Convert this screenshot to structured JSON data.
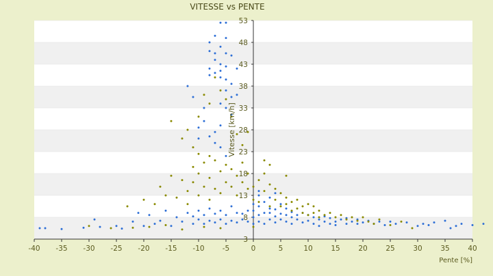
{
  "chart_data": {
    "type": "scatter",
    "title": "VITESSE vs PENTE",
    "xlabel": "Pente [%]",
    "ylabel": "Vitesse [km/h]",
    "xlim": [
      -40,
      40
    ],
    "ylim": [
      3,
      53
    ],
    "x_ticks": [
      -40,
      -35,
      -30,
      -25,
      -20,
      -15,
      -10,
      -5,
      0,
      5,
      10,
      15,
      20,
      25,
      30,
      35,
      40
    ],
    "y_ticks": [
      3,
      8,
      13,
      18,
      23,
      28,
      33,
      38,
      43,
      48,
      53
    ],
    "grid": "horizontal bands",
    "legend": "none",
    "colors": {
      "series_a": "#2e6fd6",
      "series_b": "#8a8a00",
      "band": "#f0f0f0",
      "axis_text": "#5a5a1e",
      "background": "#ecf0cc"
    },
    "series": [
      {
        "color": "#2e6fd6",
        "points": [
          [
            -39,
            5.5
          ],
          [
            -38,
            5.5
          ],
          [
            -35,
            5.3
          ],
          [
            -31,
            5.6
          ],
          [
            -29,
            7.5
          ],
          [
            -28,
            5.8
          ],
          [
            -25,
            6.0
          ],
          [
            -24,
            5.4
          ],
          [
            -22,
            7.0
          ],
          [
            -21,
            9.0
          ],
          [
            -20,
            6.0
          ],
          [
            -19,
            8.5
          ],
          [
            -18,
            6.5
          ],
          [
            -17,
            7.2
          ],
          [
            -16,
            9.5
          ],
          [
            -15,
            6.0
          ],
          [
            -14,
            8.0
          ],
          [
            -13,
            7.0
          ],
          [
            -12,
            9.0
          ],
          [
            -11,
            6.5
          ],
          [
            -11,
            8.2
          ],
          [
            -10,
            7.5
          ],
          [
            -10,
            9.5
          ],
          [
            -9,
            6.5
          ],
          [
            -9,
            8.5
          ],
          [
            -8,
            7.2
          ],
          [
            -8,
            10.0
          ],
          [
            -7,
            6.8
          ],
          [
            -7,
            8.8
          ],
          [
            -6,
            7.5
          ],
          [
            -6,
            9.5
          ],
          [
            -5,
            6.5
          ],
          [
            -5,
            8.5
          ],
          [
            -4,
            7.2
          ],
          [
            -4,
            10.5
          ],
          [
            -3,
            6.8
          ],
          [
            -3,
            9.0
          ],
          [
            -2,
            7.5
          ],
          [
            -2,
            8.8
          ],
          [
            -1,
            7.0
          ],
          [
            -1,
            9.5
          ],
          [
            -12,
            38.0
          ],
          [
            -11,
            35.5
          ],
          [
            -10,
            28.5
          ],
          [
            -9,
            30.0
          ],
          [
            -8,
            46.0
          ],
          [
            -8,
            48.0
          ],
          [
            -7,
            49.5
          ],
          [
            -7,
            45.5
          ],
          [
            -7,
            44.0
          ],
          [
            -6,
            43.0
          ],
          [
            -6,
            41.5
          ],
          [
            -6,
            40.0
          ],
          [
            -6,
            47.0
          ],
          [
            -5,
            52.5
          ],
          [
            -5,
            49.0
          ],
          [
            -5,
            42.5
          ],
          [
            -5,
            39.5
          ],
          [
            -5,
            37.0
          ],
          [
            -4,
            45.0
          ],
          [
            -4,
            38.5
          ],
          [
            -4,
            35.5
          ],
          [
            -8,
            40.5
          ],
          [
            -8,
            42.0
          ],
          [
            -7,
            41.0
          ],
          [
            -6,
            52.5
          ],
          [
            -5,
            45.5
          ],
          [
            -6,
            34.0
          ],
          [
            -5,
            33.0
          ],
          [
            -4,
            31.5
          ],
          [
            -3,
            42.0
          ],
          [
            -3,
            36.0
          ],
          [
            -10,
            26.0
          ],
          [
            -9,
            33.0
          ],
          [
            -8,
            26.5
          ],
          [
            -7,
            27.5
          ],
          [
            -7,
            25.0
          ],
          [
            -6,
            24.0
          ],
          [
            -6,
            29.0
          ],
          [
            -5,
            22.0
          ],
          [
            0,
            6.5
          ],
          [
            0,
            8.0
          ],
          [
            0,
            9.5
          ],
          [
            0,
            11.0
          ],
          [
            1,
            7.0
          ],
          [
            1,
            8.5
          ],
          [
            1,
            10.5
          ],
          [
            1,
            13.0
          ],
          [
            2,
            6.5
          ],
          [
            2,
            9.0
          ],
          [
            2,
            11.5
          ],
          [
            3,
            7.5
          ],
          [
            3,
            9.0
          ],
          [
            3,
            10.0
          ],
          [
            4,
            6.8
          ],
          [
            4,
            8.2
          ],
          [
            4,
            9.8
          ],
          [
            5,
            7.5
          ],
          [
            5,
            8.8
          ],
          [
            5,
            11.0
          ],
          [
            6,
            7.0
          ],
          [
            6,
            8.5
          ],
          [
            6,
            10.0
          ],
          [
            7,
            6.5
          ],
          [
            7,
            8.0
          ],
          [
            7,
            9.2
          ],
          [
            8,
            7.5
          ],
          [
            8,
            8.5
          ],
          [
            9,
            6.8
          ],
          [
            9,
            9.0
          ],
          [
            10,
            7.2
          ],
          [
            10,
            8.5
          ],
          [
            11,
            6.5
          ],
          [
            11,
            8.0
          ],
          [
            12,
            7.5
          ],
          [
            12,
            6.0
          ],
          [
            13,
            7.0
          ],
          [
            13,
            8.2
          ],
          [
            14,
            6.5
          ],
          [
            14,
            7.8
          ],
          [
            15,
            7.0
          ],
          [
            15,
            6.2
          ],
          [
            16,
            7.5
          ],
          [
            17,
            6.5
          ],
          [
            17,
            7.8
          ],
          [
            18,
            7.0
          ],
          [
            19,
            6.5
          ],
          [
            19,
            7.5
          ],
          [
            20,
            6.8
          ],
          [
            21,
            7.2
          ],
          [
            22,
            6.5
          ],
          [
            23,
            7.0
          ],
          [
            24,
            6.2
          ],
          [
            25,
            7.0
          ],
          [
            26,
            6.5
          ],
          [
            28,
            6.8
          ],
          [
            30,
            6.0
          ],
          [
            31,
            6.5
          ],
          [
            32,
            6.2
          ],
          [
            33,
            6.8
          ],
          [
            35,
            7.2
          ],
          [
            36,
            5.5
          ],
          [
            37,
            6.0
          ],
          [
            38,
            6.5
          ],
          [
            40,
            6.2
          ],
          [
            42,
            6.5
          ],
          [
            3,
            12.5
          ],
          [
            4,
            13.5
          ],
          [
            1,
            14.0
          ]
        ]
      },
      {
        "color": "#8a8a00",
        "points": [
          [
            -30,
            6.0
          ],
          [
            -26,
            5.5
          ],
          [
            -23,
            10.5
          ],
          [
            -22,
            5.6
          ],
          [
            -20,
            12.0
          ],
          [
            -19,
            5.8
          ],
          [
            -18,
            11.0
          ],
          [
            -17,
            15.0
          ],
          [
            -16,
            13.0
          ],
          [
            -15,
            17.5
          ],
          [
            -14,
            12.5
          ],
          [
            -13,
            16.5
          ],
          [
            -12,
            11.0
          ],
          [
            -12,
            14.0
          ],
          [
            -11,
            16.0
          ],
          [
            -11,
            19.5
          ],
          [
            -10,
            13.0
          ],
          [
            -10,
            18.0
          ],
          [
            -9,
            15.0
          ],
          [
            -9,
            20.5
          ],
          [
            -8,
            12.0
          ],
          [
            -8,
            17.0
          ],
          [
            -7,
            14.5
          ],
          [
            -7,
            21.0
          ],
          [
            -6,
            13.5
          ],
          [
            -6,
            18.5
          ],
          [
            -5,
            16.0
          ],
          [
            -5,
            20.0
          ],
          [
            -4,
            15.0
          ],
          [
            -4,
            19.0
          ],
          [
            -3,
            17.5
          ],
          [
            -3,
            13.0
          ],
          [
            -2,
            16.0
          ],
          [
            -2,
            20.5
          ],
          [
            -1,
            14.5
          ],
          [
            -1,
            18.0
          ],
          [
            -15,
            30.0
          ],
          [
            -13,
            26.0
          ],
          [
            -12,
            28.0
          ],
          [
            -11,
            24.0
          ],
          [
            -10,
            31.0
          ],
          [
            -9,
            36.0
          ],
          [
            -8,
            34.0
          ],
          [
            -7,
            40.0
          ],
          [
            -6,
            37.0
          ],
          [
            -5,
            35.0
          ],
          [
            -4,
            31.0
          ],
          [
            -3,
            27.0
          ],
          [
            -10,
            22.5
          ],
          [
            -8,
            22.0
          ],
          [
            0,
            15.0
          ],
          [
            0,
            12.0
          ],
          [
            1,
            16.5
          ],
          [
            1,
            11.5
          ],
          [
            2,
            18.0
          ],
          [
            2,
            14.0
          ],
          [
            3,
            15.5
          ],
          [
            3,
            10.5
          ],
          [
            4,
            12.0
          ],
          [
            4,
            14.5
          ],
          [
            5,
            10.5
          ],
          [
            5,
            13.5
          ],
          [
            6,
            11.0
          ],
          [
            6,
            12.5
          ],
          [
            7,
            9.5
          ],
          [
            7,
            11.5
          ],
          [
            8,
            10.0
          ],
          [
            8,
            12.0
          ],
          [
            9,
            9.0
          ],
          [
            9,
            10.5
          ],
          [
            10,
            8.5
          ],
          [
            10,
            11.0
          ],
          [
            11,
            9.0
          ],
          [
            11,
            10.5
          ],
          [
            12,
            8.0
          ],
          [
            12,
            9.5
          ],
          [
            13,
            8.5
          ],
          [
            14,
            9.0
          ],
          [
            15,
            8.0
          ],
          [
            16,
            8.5
          ],
          [
            17,
            7.5
          ],
          [
            18,
            8.0
          ],
          [
            19,
            7.2
          ],
          [
            20,
            8.0
          ],
          [
            21,
            7.0
          ],
          [
            22,
            6.5
          ],
          [
            23,
            7.5
          ],
          [
            25,
            6.2
          ],
          [
            27,
            7.0
          ],
          [
            29,
            5.5
          ],
          [
            2,
            21.0
          ],
          [
            3,
            20.0
          ],
          [
            6,
            17.5
          ],
          [
            -2,
            24.5
          ],
          [
            -1,
            27.5
          ],
          [
            0,
            5.8
          ],
          [
            -6,
            5.5
          ],
          [
            -9,
            5.8
          ],
          [
            -13,
            5.2
          ],
          [
            -16,
            6.2
          ]
        ]
      }
    ]
  }
}
